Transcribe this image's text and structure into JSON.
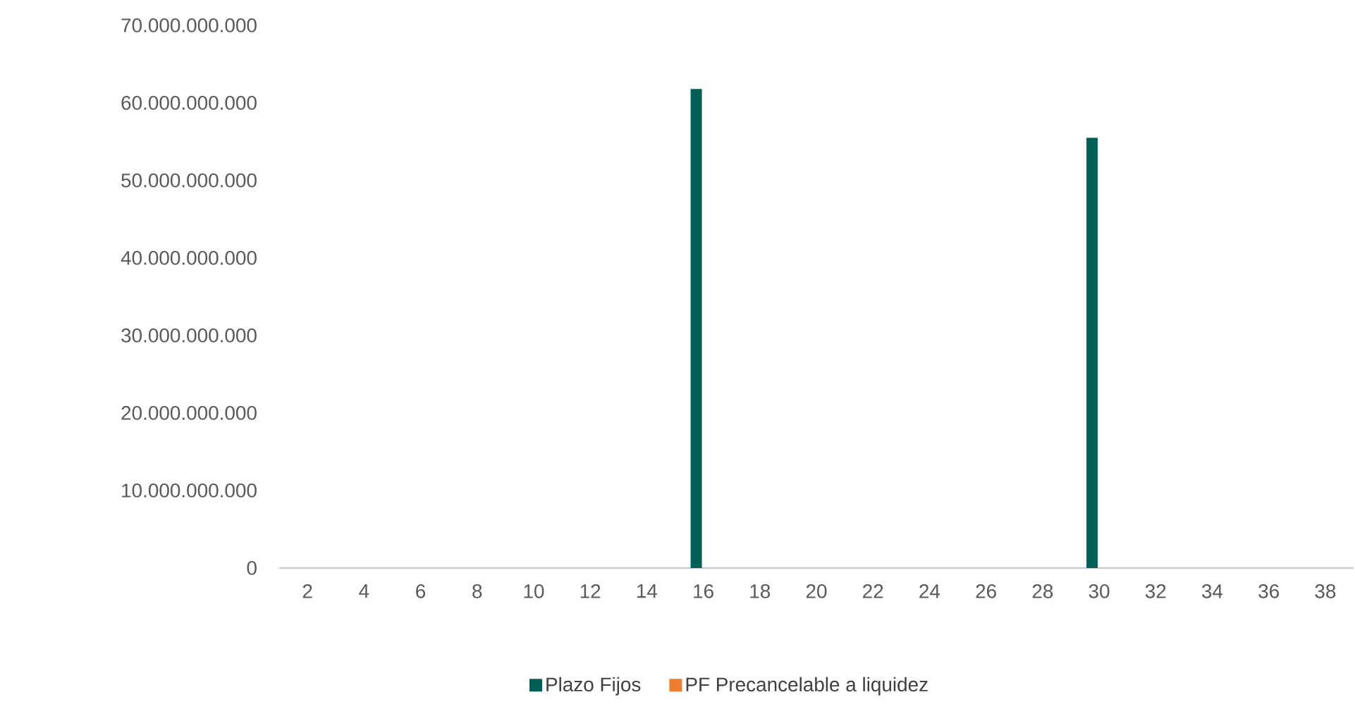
{
  "chart_data": {
    "type": "bar",
    "categories": [
      "2",
      "4",
      "6",
      "8",
      "10",
      "12",
      "14",
      "16",
      "18",
      "20",
      "22",
      "24",
      "26",
      "28",
      "30",
      "32",
      "34",
      "36",
      "38"
    ],
    "series": [
      {
        "name": "Plazo Fijos",
        "color": "#005f56",
        "values": [
          0,
          0,
          0,
          0,
          0,
          0,
          0,
          61800000000,
          0,
          0,
          0,
          0,
          0,
          0,
          55500000000,
          0,
          0,
          0,
          0
        ]
      },
      {
        "name": "PF Precancelable a liquidez",
        "color": "#ed7d31",
        "values": [
          0,
          0,
          0,
          0,
          0,
          0,
          0,
          0,
          0,
          0,
          0,
          0,
          0,
          0,
          0,
          0,
          0,
          0,
          0
        ]
      }
    ],
    "ylim": [
      0,
      70000000000
    ],
    "yticks": [
      {
        "value": 0,
        "label": "0"
      },
      {
        "value": 10000000000,
        "label": "10.000.000.000"
      },
      {
        "value": 20000000000,
        "label": "20.000.000.000"
      },
      {
        "value": 30000000000,
        "label": "30.000.000.000"
      },
      {
        "value": 40000000000,
        "label": "40.000.000.000"
      },
      {
        "value": 50000000000,
        "label": "50.000.000.000"
      },
      {
        "value": 60000000000,
        "label": "60.000.000.000"
      },
      {
        "value": 70000000000,
        "label": "70.000.000.000"
      }
    ],
    "grid": false,
    "legend": "bottom"
  }
}
